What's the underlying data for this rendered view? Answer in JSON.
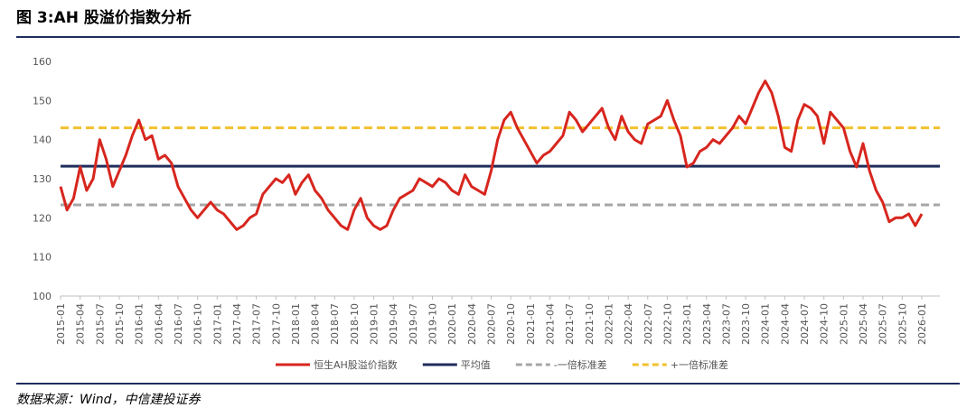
{
  "chart_data": {
    "type": "line",
    "title": "图 3:AH 股溢价指数分析",
    "source": "数据来源：Wind，中信建投证券",
    "x": [
      "2015-01",
      "2015-02",
      "2015-03",
      "2015-04",
      "2015-05",
      "2015-06",
      "2015-07",
      "2015-08",
      "2015-09",
      "2015-10",
      "2015-11",
      "2015-12",
      "2016-01",
      "2016-02",
      "2016-03",
      "2016-04",
      "2016-05",
      "2016-06",
      "2016-07",
      "2016-08",
      "2016-09",
      "2016-10",
      "2016-11",
      "2016-12",
      "2017-01",
      "2017-02",
      "2017-03",
      "2017-04",
      "2017-05",
      "2017-06",
      "2017-07",
      "2017-08",
      "2017-09",
      "2017-10",
      "2017-11",
      "2017-12",
      "2018-01",
      "2018-02",
      "2018-03",
      "2018-04",
      "2018-05",
      "2018-06",
      "2018-07",
      "2018-08",
      "2018-09",
      "2018-10",
      "2018-11",
      "2018-12",
      "2019-01",
      "2019-02",
      "2019-03",
      "2019-04",
      "2019-05",
      "2019-06",
      "2019-07",
      "2019-08",
      "2019-09",
      "2019-10",
      "2019-11",
      "2019-12",
      "2020-01",
      "2020-02",
      "2020-03",
      "2020-04",
      "2020-05",
      "2020-06",
      "2020-07",
      "2020-08",
      "2020-09",
      "2020-10",
      "2020-11",
      "2020-12",
      "2021-01",
      "2021-02",
      "2021-03",
      "2021-04",
      "2021-05",
      "2021-06",
      "2021-07",
      "2021-08",
      "2021-09",
      "2021-10",
      "2021-11",
      "2021-12",
      "2022-01",
      "2022-02",
      "2022-03",
      "2022-04",
      "2022-05",
      "2022-06",
      "2022-07",
      "2022-08",
      "2022-09",
      "2022-10",
      "2022-11",
      "2022-12",
      "2023-01",
      "2023-02",
      "2023-03",
      "2023-04",
      "2023-05",
      "2023-06",
      "2023-07",
      "2023-08",
      "2023-09",
      "2023-10",
      "2023-11",
      "2023-12",
      "2024-01",
      "2024-02",
      "2024-03",
      "2024-04",
      "2024-05",
      "2024-06",
      "2024-07",
      "2024-08",
      "2024-09",
      "2024-10",
      "2024-11",
      "2024-12",
      "2025-01",
      "2025-02",
      "2025-03",
      "2025-04",
      "2025-05",
      "2025-06",
      "2025-07",
      "2025-08",
      "2025-09",
      "2025-10",
      "2025-11",
      "2025-12",
      "2026-01"
    ],
    "xticks": [
      "2015-01",
      "2015-04",
      "2015-07",
      "2015-10",
      "2016-01",
      "2016-04",
      "2016-07",
      "2016-10",
      "2017-01",
      "2017-04",
      "2017-07",
      "2017-10",
      "2018-01",
      "2018-04",
      "2018-07",
      "2018-10",
      "2019-01",
      "2019-04",
      "2019-07",
      "2019-10",
      "2020-01",
      "2020-04",
      "2020-07",
      "2020-10",
      "2021-01",
      "2021-04",
      "2021-07",
      "2021-10",
      "2022-01",
      "2022-04",
      "2022-07",
      "2022-10",
      "2023-01",
      "2023-04",
      "2023-07",
      "2023-10",
      "2024-01",
      "2024-04",
      "2024-07",
      "2024-10",
      "2025-01",
      "2025-04",
      "2025-07",
      "2025-10",
      "2026-01"
    ],
    "series": [
      {
        "name": "恒生AH股溢价指数",
        "color": "#d7261e",
        "values": [
          128,
          122,
          125,
          133,
          127,
          130,
          140,
          135,
          128,
          132,
          136,
          141,
          145,
          140,
          141,
          135,
          136,
          134,
          128,
          125,
          122,
          120,
          122,
          124,
          122,
          121,
          119,
          117,
          118,
          120,
          121,
          126,
          128,
          130,
          129,
          131,
          126,
          129,
          131,
          127,
          125,
          122,
          120,
          118,
          117,
          122,
          125,
          120,
          118,
          117,
          118,
          122,
          125,
          126,
          127,
          130,
          129,
          128,
          130,
          129,
          127,
          126,
          131,
          128,
          127,
          126,
          132,
          140,
          145,
          147,
          143,
          140,
          137,
          134,
          136,
          137,
          139,
          141,
          147,
          145,
          142,
          144,
          146,
          148,
          143,
          140,
          146,
          142,
          140,
          139,
          144,
          145,
          146,
          150,
          145,
          141,
          133,
          134,
          137,
          138,
          140,
          139,
          141,
          143,
          146,
          144,
          148,
          152,
          155,
          152,
          146,
          138,
          137,
          145,
          149,
          148,
          146,
          139,
          147,
          145,
          143,
          137,
          133,
          139,
          132,
          127,
          124,
          119,
          120,
          120,
          121,
          118,
          121
        ]
      }
    ],
    "reference_lines": [
      {
        "name": "平均值",
        "color": "#1f2d5c",
        "value": 133.2,
        "dash": false
      },
      {
        "name": "-一倍标准差",
        "color": "#a6a6a6",
        "value": 123.3,
        "dash": true
      },
      {
        "name": "+一倍标准差",
        "color": "#f2c12e",
        "value": 143,
        "dash": true
      }
    ],
    "ylim": [
      100,
      160
    ],
    "yticks": [
      100,
      110,
      120,
      130,
      140,
      150,
      160
    ]
  }
}
